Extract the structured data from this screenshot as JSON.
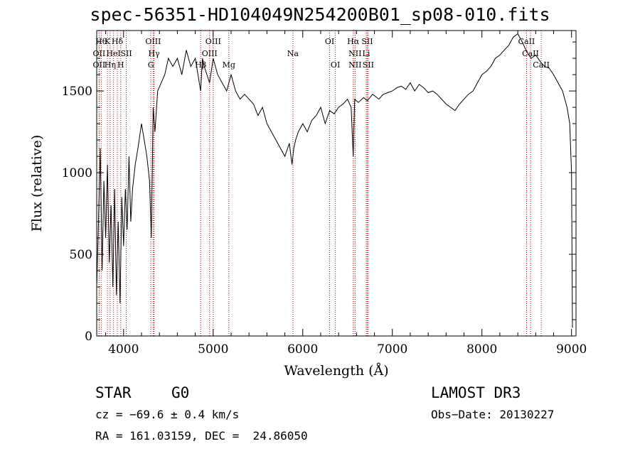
{
  "chart_data": {
    "type": "line",
    "title": "spec-56351-HD104049N254200B01_sp08-010.fits",
    "xlabel": "Wavelength (Å)",
    "ylabel": "Flux (relative)",
    "xlim": [
      3700,
      9050
    ],
    "ylim": [
      0,
      1870
    ],
    "x_ticks": [
      4000,
      5000,
      6000,
      7000,
      8000,
      9000
    ],
    "y_ticks": [
      0,
      500,
      1000,
      1500
    ],
    "grid": false,
    "series": [
      {
        "x": [
          3700,
          3720,
          3740,
          3760,
          3780,
          3800,
          3820,
          3840,
          3860,
          3880,
          3900,
          3920,
          3940,
          3960,
          3980,
          4000,
          4020,
          4040,
          4060,
          4080,
          4100,
          4130,
          4160,
          4200,
          4230,
          4260,
          4290,
          4310,
          4330,
          4350,
          4380,
          4420,
          4460,
          4500,
          4550,
          4600,
          4650,
          4700,
          4750,
          4800,
          4830,
          4860,
          4880,
          4900,
          4930,
          4960,
          5000,
          5050,
          5100,
          5150,
          5200,
          5250,
          5300,
          5350,
          5400,
          5450,
          5500,
          5550,
          5600,
          5650,
          5700,
          5750,
          5800,
          5850,
          5880,
          5900,
          5920,
          5950,
          6000,
          6050,
          6100,
          6150,
          6200,
          6250,
          6300,
          6350,
          6400,
          6450,
          6500,
          6540,
          6563,
          6580,
          6620,
          6680,
          6720,
          6780,
          6850,
          6900,
          6950,
          7000,
          7050,
          7100,
          7150,
          7200,
          7250,
          7300,
          7350,
          7400,
          7450,
          7500,
          7550,
          7600,
          7650,
          7700,
          7750,
          7800,
          7850,
          7900,
          7950,
          8000,
          8050,
          8100,
          8150,
          8200,
          8250,
          8300,
          8350,
          8400,
          8450,
          8500,
          8550,
          8600,
          8650,
          8700,
          8750,
          8800,
          8850,
          8900,
          8950,
          8980,
          9000,
          9010
        ],
        "values": [
          300,
          700,
          1150,
          400,
          950,
          600,
          1050,
          450,
          800,
          300,
          900,
          250,
          700,
          200,
          850,
          550,
          900,
          650,
          1100,
          700,
          900,
          1050,
          1150,
          1300,
          1200,
          1100,
          950,
          600,
          1400,
          1250,
          1500,
          1550,
          1600,
          1700,
          1650,
          1700,
          1600,
          1750,
          1650,
          1700,
          1600,
          1500,
          1700,
          1650,
          1600,
          1550,
          1700,
          1600,
          1550,
          1500,
          1600,
          1500,
          1450,
          1480,
          1450,
          1420,
          1350,
          1400,
          1300,
          1250,
          1200,
          1150,
          1100,
          1180,
          1050,
          1150,
          1200,
          1250,
          1300,
          1250,
          1320,
          1350,
          1400,
          1300,
          1380,
          1360,
          1400,
          1420,
          1450,
          1400,
          1100,
          1450,
          1430,
          1460,
          1440,
          1480,
          1450,
          1480,
          1490,
          1500,
          1520,
          1530,
          1510,
          1550,
          1500,
          1540,
          1520,
          1490,
          1500,
          1480,
          1450,
          1420,
          1400,
          1380,
          1420,
          1450,
          1480,
          1500,
          1550,
          1600,
          1620,
          1650,
          1700,
          1720,
          1750,
          1780,
          1830,
          1850,
          1800,
          1740,
          1700,
          1720,
          1680,
          1650,
          1640,
          1600,
          1550,
          1500,
          1400,
          1300,
          1000,
          50
        ]
      }
    ],
    "line_labels": [
      {
        "x": 3750,
        "text": "Hθ",
        "row": 1
      },
      {
        "x": 3820,
        "text": "K",
        "row": 1
      },
      {
        "x": 3930,
        "text": "Hδ",
        "row": 1
      },
      {
        "x": 4330,
        "text": "OIII",
        "row": 1
      },
      {
        "x": 5000,
        "text": "OIII",
        "row": 1
      },
      {
        "x": 6300,
        "text": "OI",
        "row": 1
      },
      {
        "x": 6563,
        "text": "Hα",
        "row": 1
      },
      {
        "x": 6720,
        "text": "SII",
        "row": 1
      },
      {
        "x": 8498,
        "text": "CaII",
        "row": 1
      },
      {
        "x": 3727,
        "text": "OII",
        "row": 2
      },
      {
        "x": 3888,
        "text": "HeI",
        "row": 2
      },
      {
        "x": 4030,
        "text": "SII",
        "row": 2
      },
      {
        "x": 4340,
        "text": "Hγ",
        "row": 2
      },
      {
        "x": 4960,
        "text": "OIII",
        "row": 2
      },
      {
        "x": 5890,
        "text": "Na",
        "row": 2
      },
      {
        "x": 6584,
        "text": "NII",
        "row": 2
      },
      {
        "x": 6708,
        "text": "Li",
        "row": 2
      },
      {
        "x": 8542,
        "text": "CaII",
        "row": 2
      },
      {
        "x": 3727,
        "text": "OII",
        "row": 3
      },
      {
        "x": 3850,
        "text": "Hη",
        "row": 3
      },
      {
        "x": 3968,
        "text": "H",
        "row": 3
      },
      {
        "x": 4304,
        "text": "G",
        "row": 3
      },
      {
        "x": 4861,
        "text": "Hβ",
        "row": 3
      },
      {
        "x": 5175,
        "text": "Mg",
        "row": 3
      },
      {
        "x": 6364,
        "text": "OI",
        "row": 3
      },
      {
        "x": 6584,
        "text": "NII",
        "row": 3
      },
      {
        "x": 6731,
        "text": "SII",
        "row": 3
      },
      {
        "x": 8662,
        "text": "CaII",
        "row": 3
      }
    ],
    "line_color": "#000000",
    "marker_color": "#c00000"
  },
  "info": {
    "class": "STAR",
    "subclass": "G0",
    "survey": "LAMOST DR3",
    "cz": "cz = −69.6 ± 0.4 km/s",
    "obs_date": "Obs−Date: 20130227",
    "coords": "RA = 161.03159, DEC =  24.86050"
  }
}
